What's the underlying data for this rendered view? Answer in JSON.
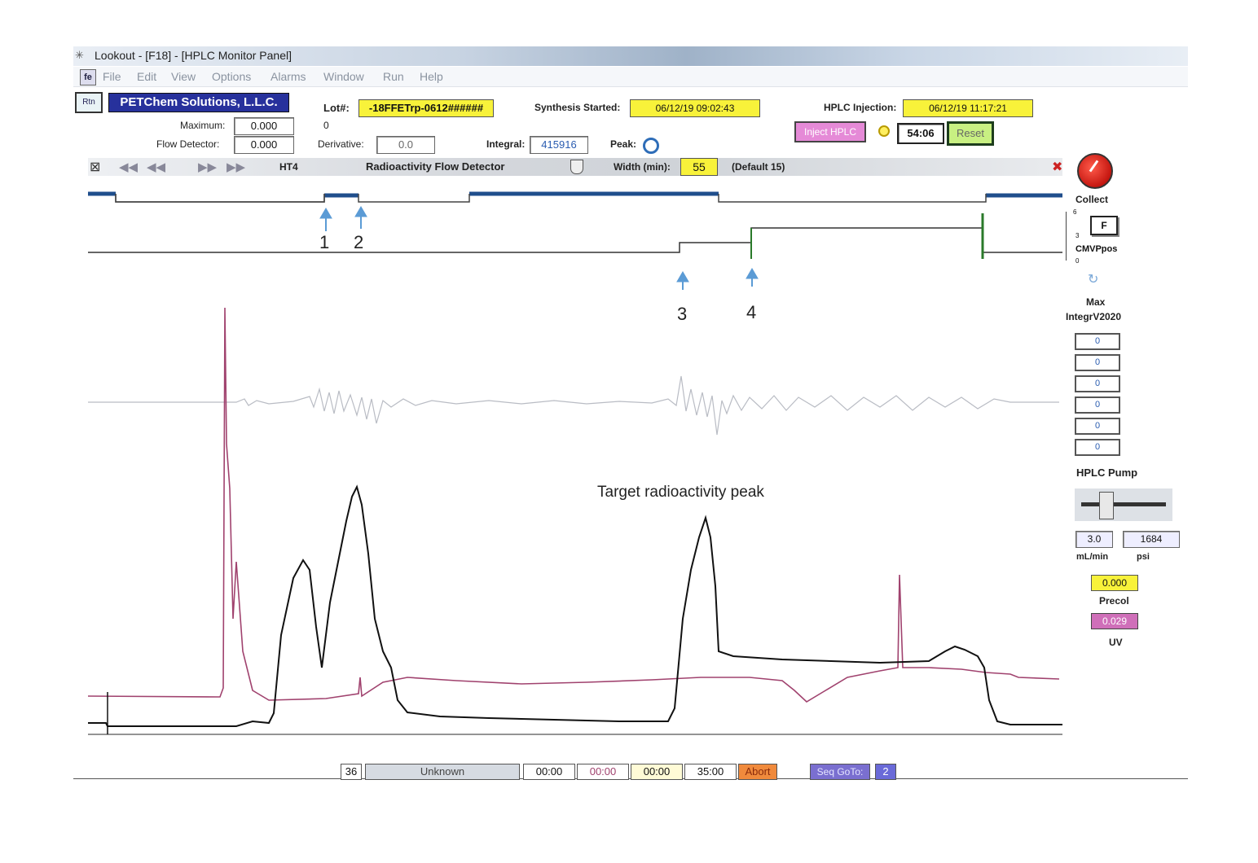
{
  "window": {
    "title": "Lookout - [F18] - [HPLC Monitor Panel]"
  },
  "menu": [
    "File",
    "Edit",
    "View",
    "Options",
    "Alarms",
    "Window",
    "Run",
    "Help"
  ],
  "header": {
    "rtn_label": "Rtn",
    "company": "PETChem Solutions, L.L.C.",
    "maximum_label": "Maximum:",
    "maximum_value": "0.000",
    "flow_detector_label": "Flow Detector:",
    "flow_detector_value": "0.000",
    "lot_label": "Lot#:",
    "lot_value": "-18FFETrp-0612######",
    "zero_value": "0",
    "derivative_label": "Derivative:",
    "derivative_value": "0.0",
    "integral_label": "Integral:",
    "integral_value": "415916",
    "peak_label": "Peak:",
    "synthesis_label": "Synthesis Started:",
    "synthesis_value": "06/12/19 09:02:43",
    "injection_label": "HPLC Injection:",
    "injection_value": "06/12/19 11:17:21",
    "inject_button": "Inject HPLC",
    "timer_value": "54:06",
    "reset_button": "Reset"
  },
  "toolbar": {
    "channel": "HT4",
    "detector_title": "Radioactivity Flow Detector",
    "width_label": "Width (min):",
    "width_value": "55",
    "default_label": "(Default 15)"
  },
  "annotations": {
    "markers": [
      "1",
      "2",
      "3",
      "4"
    ],
    "peak_label": "Target radioactivity peak"
  },
  "right_panel": {
    "collect_label": "Collect",
    "f_button": "F",
    "cmv_label": "CMVPpos",
    "scale_labels": [
      "6",
      "3",
      "0"
    ],
    "max_label": "Max",
    "integ_label": "IntegrV2020",
    "integ_values": [
      "0",
      "0",
      "0",
      "0",
      "0",
      "0"
    ],
    "pump_label": "HPLC Pump",
    "flow_value": "3.0",
    "flow_unit": "mL/min",
    "psi_value": "1684",
    "psi_unit": "psi",
    "precol_value": "0.000",
    "precol_label": "Precol",
    "uv_value": "0.029",
    "uv_label": "UV"
  },
  "statusbar": {
    "step": "36",
    "name": "Unknown",
    "t1": "00:00",
    "t2": "00:00",
    "t3": "00:00",
    "t4": "35:00",
    "abort": "Abort",
    "seq_goto": "Seq GoTo:",
    "seq_value": "2"
  },
  "colors": {
    "trace_black": "#111111",
    "trace_magenta": "#a0426e",
    "trace_gray": "#b9bcc4",
    "valve_blue": "#1f4e8c",
    "arrow_blue": "#5b9bd5"
  }
}
